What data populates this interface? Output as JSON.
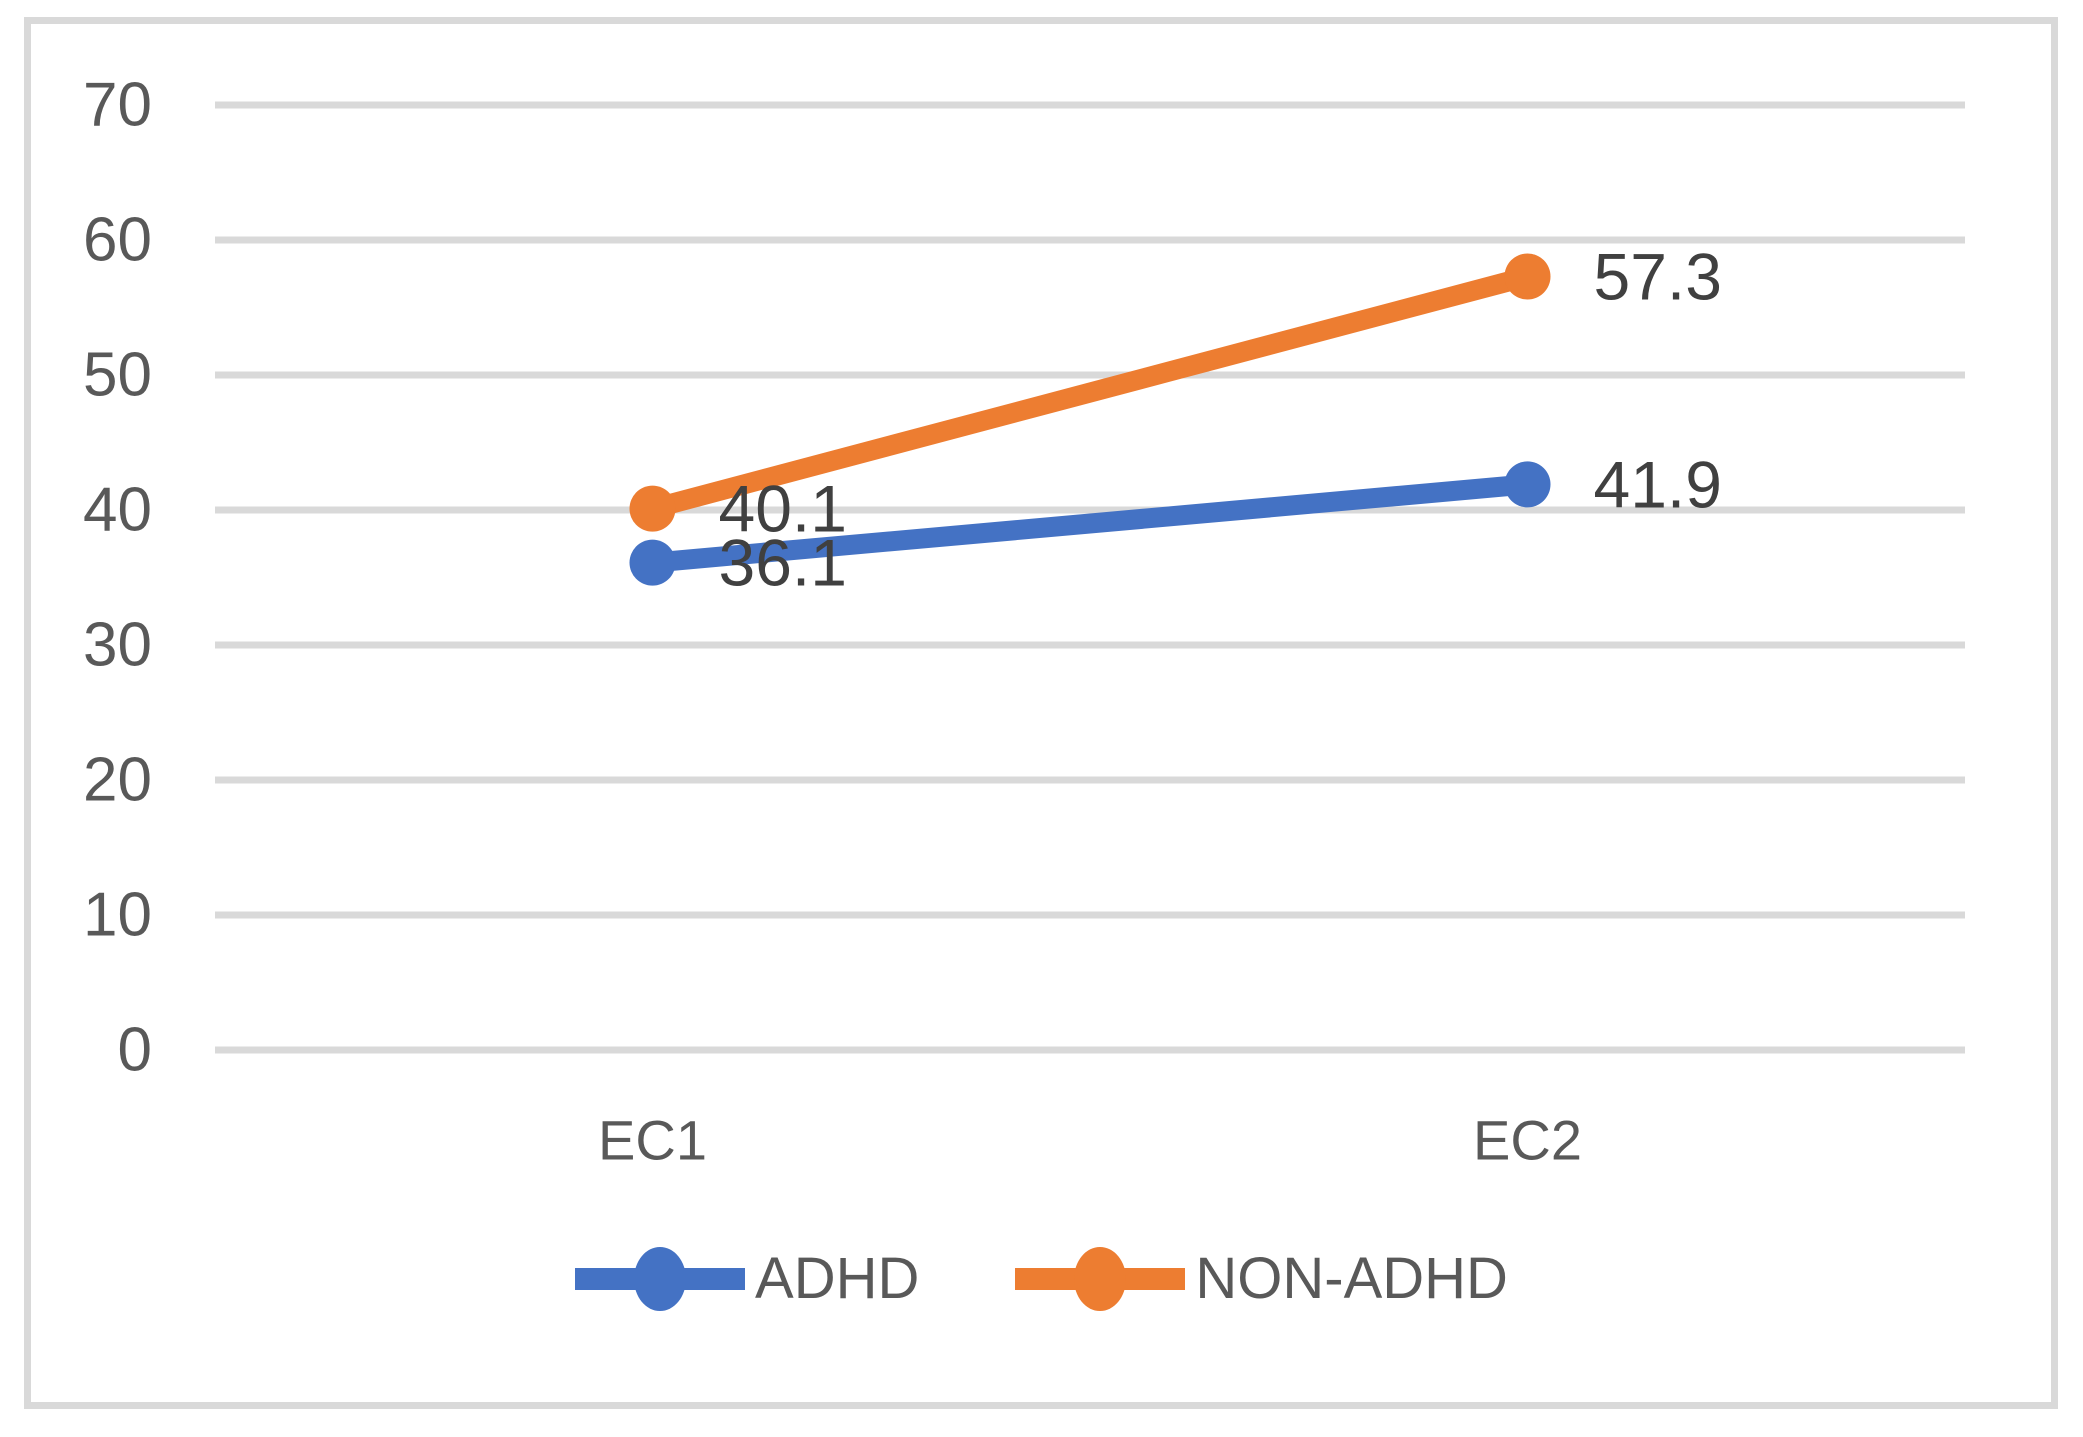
{
  "chart_data": {
    "type": "line",
    "categories": [
      "EC1",
      "EC2"
    ],
    "series": [
      {
        "name": "ADHD",
        "values": [
          36.1,
          41.9
        ],
        "labels": [
          "36.1",
          "41.9"
        ],
        "color": "#4472C4"
      },
      {
        "name": "NON-ADHD",
        "values": [
          40.1,
          57.3
        ],
        "labels": [
          "40.1",
          "57.3"
        ],
        "color": "#ED7D31"
      }
    ],
    "title": "",
    "xlabel": "",
    "ylabel": "",
    "ylim": [
      0,
      70
    ],
    "yticks": [
      0,
      10,
      20,
      30,
      40,
      50,
      60,
      70
    ],
    "grid": true,
    "legend_position": "bottom",
    "marker": "circle",
    "data_label_position": "right-of-point"
  },
  "colors": {
    "gridline": "#D9D9D9",
    "frame_border": "#D9D9D9",
    "axis_text": "#595959",
    "data_label_text": "#404040",
    "legend_text": "#595959",
    "background": "#FFFFFF"
  }
}
